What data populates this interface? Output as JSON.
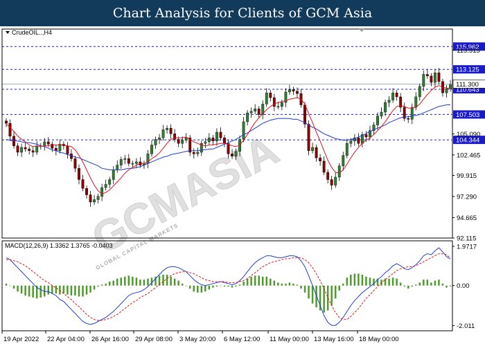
{
  "header": {
    "title": "Chart Analysis for Clients of GCM Asia"
  },
  "watermark": {
    "main": "GCMASIA",
    "sub": "GLOBAL CAPITAL MARKETS"
  },
  "colors": {
    "bull": "#2e7d32",
    "bear": "#8b0000",
    "ma_fast": "#e0121b",
    "ma_slow": "#1f3fcf",
    "level": "#1a1acd",
    "macd_line": "#1f3fcf",
    "signal": "#e0121b",
    "hist": "#4c9a2a"
  },
  "chart_data": [
    {
      "type": "candlestick",
      "symbol_label": "CrudeOIL..,H4",
      "ylim": [
        92.115,
        118.14
      ],
      "yticks": [
        "115.515",
        "105.090",
        "102.465",
        "99.915",
        "97.290",
        "94.665",
        "92.115"
      ],
      "xticks": [
        "19 Apr 2022",
        "22 Apr 04:00",
        "26 Apr 16:00",
        "29 Apr 08:00",
        "3 May 20:00",
        "6 May 12:00",
        "11 May 00:00",
        "13 May 16:00",
        "18 May 00:00"
      ],
      "current_price": 111.3,
      "current_price_label": "111.300",
      "levels": [
        {
          "value": 115.962,
          "label": "115.962"
        },
        {
          "value": 113.125,
          "label": "113.125"
        },
        {
          "value": 110.643,
          "label": "110.643"
        },
        {
          "value": 107.503,
          "label": "107.503"
        },
        {
          "value": 104.344,
          "label": "104.344"
        }
      ],
      "closes": [
        106.4,
        104.8,
        103.6,
        102.8,
        103.4,
        103.2,
        103.0,
        102.8,
        103.6,
        103.6,
        104.1,
        103.8,
        103.3,
        103.0,
        103.8,
        103.6,
        102.6,
        102.0,
        100.8,
        99.4,
        98.3,
        97.5,
        96.6,
        96.9,
        97.3,
        98.4,
        98.8,
        99.4,
        100.6,
        101.2,
        101.9,
        102.0,
        101.4,
        101.4,
        101.6,
        101.2,
        101.4,
        102.6,
        103.7,
        104.4,
        104.6,
        105.6,
        105.8,
        105.1,
        104.4,
        103.9,
        104.3,
        104.6,
        102.8,
        102.6,
        102.8,
        103.9,
        104.1,
        104.6,
        104.2,
        105.3,
        104.6,
        103.9,
        102.6,
        102.3,
        102.9,
        104.4,
        106.6,
        107.7,
        107.9,
        108.2,
        107.5,
        108.8,
        110.2,
        109.6,
        108.5,
        108.5,
        109.0,
        110.3,
        110.6,
        110.4,
        110.1,
        108.7,
        106.3,
        103.0,
        103.4,
        102.1,
        101.7,
        100.3,
        99.4,
        98.7,
        99.7,
        101.1,
        102.4,
        103.9,
        104.2,
        104.6,
        103.9,
        105.0,
        104.7,
        105.5,
        106.2,
        107.3,
        107.8,
        109.0,
        109.3,
        110.2,
        109.7,
        108.4,
        107.0,
        106.9,
        108.4,
        109.7,
        111.0,
        112.5,
        112.3,
        111.5,
        112.7,
        111.6,
        110.2,
        110.7,
        111.2
      ],
      "ma_fast": [
        106.3,
        105.9,
        105.4,
        104.8,
        104.4,
        104.1,
        103.7,
        103.5,
        103.6,
        103.5,
        103.6,
        103.6,
        103.7,
        103.7,
        103.7,
        103.7,
        103.6,
        103.5,
        103.1,
        102.4,
        101.6,
        100.6,
        99.6,
        98.7,
        98.0,
        97.6,
        97.8,
        98.1,
        98.6,
        99.1,
        99.6,
        100.2,
        100.6,
        100.9,
        101.2,
        101.4,
        101.4,
        101.6,
        102.0,
        102.3,
        102.7,
        103.3,
        103.9,
        104.4,
        104.6,
        104.6,
        104.6,
        104.7,
        104.4,
        104.1,
        103.9,
        103.7,
        103.6,
        103.7,
        103.7,
        103.8,
        103.9,
        103.9,
        103.8,
        103.6,
        103.5,
        103.7,
        104.3,
        105.0,
        105.8,
        106.5,
        107.1,
        107.6,
        108.1,
        108.5,
        108.8,
        109.0,
        109.1,
        109.2,
        109.4,
        109.5,
        109.6,
        109.4,
        108.8,
        107.6,
        106.5,
        105.3,
        104.2,
        103.0,
        101.8,
        100.9,
        100.3,
        100.2,
        100.6,
        101.3,
        102.1,
        102.8,
        103.4,
        103.9,
        104.3,
        104.6,
        105.0,
        105.5,
        106.0,
        106.6,
        107.3,
        108.0,
        108.5,
        108.6,
        108.5,
        108.3,
        108.3,
        108.4,
        108.8,
        109.4,
        110.0,
        110.5,
        110.9,
        111.1,
        110.9,
        110.8,
        110.7
      ],
      "ma_slow": [
        104.4,
        104.3,
        104.2,
        104.2,
        104.1,
        104.0,
        104.0,
        103.9,
        103.8,
        103.6,
        103.5,
        103.3,
        103.1,
        103.0,
        102.8,
        102.7,
        102.5,
        102.4,
        102.2,
        102.1,
        101.9,
        101.7,
        101.5,
        101.3,
        101.1,
        100.8,
        100.7,
        100.6,
        100.6,
        100.6,
        100.6,
        100.7,
        100.8,
        100.8,
        100.9,
        101.0,
        101.2,
        101.4,
        101.6,
        101.8,
        102.0,
        102.2,
        102.3,
        102.5,
        102.6,
        102.7,
        102.8,
        102.9,
        103.0,
        103.0,
        103.0,
        103.1,
        103.1,
        103.2,
        103.2,
        103.4,
        103.6,
        103.8,
        104.0,
        104.2,
        104.4,
        104.7,
        105.0,
        105.2,
        105.5,
        105.8,
        106.1,
        106.4,
        106.6,
        106.8,
        106.9,
        107.0,
        107.0,
        107.0,
        107.0,
        106.9,
        106.9,
        106.7,
        106.5,
        106.2,
        105.9,
        105.7,
        105.4,
        105.1,
        104.9,
        104.7,
        104.5,
        104.4,
        104.3,
        104.3,
        104.4,
        104.5,
        104.7,
        104.9,
        105.1,
        105.4,
        105.6,
        105.8,
        106.0,
        106.2,
        106.5,
        106.7,
        106.9,
        107.1,
        107.2,
        107.2,
        107.3,
        107.4,
        107.5,
        107.7,
        107.9,
        108.1,
        108.3,
        108.5,
        108.6,
        108.7,
        108.7
      ]
    },
    {
      "type": "macd",
      "label": "MACD(12,26,9) 1.3362 1.3765 -0.0403",
      "params": [
        12,
        26,
        9
      ],
      "values": {
        "macd": 1.3362,
        "signal": 1.3765,
        "histogram": -0.0403
      },
      "ylim": [
        -2.27,
        2.25
      ],
      "yticks": [
        "1.9717",
        "0.00",
        "-2.011"
      ],
      "macd": [
        1.4,
        1.3,
        1.1,
        0.9,
        0.7,
        0.5,
        0.3,
        0.1,
        -0.1,
        -0.2,
        -0.3,
        -0.3,
        -0.4,
        -0.5,
        -0.7,
        -0.8,
        -1.0,
        -1.2,
        -1.4,
        -1.6,
        -1.8,
        -1.9,
        -1.95,
        -1.9,
        -1.8,
        -1.7,
        -1.6,
        -1.45,
        -1.3,
        -1.1,
        -0.9,
        -0.7,
        -0.5,
        -0.4,
        -0.35,
        -0.3,
        -0.2,
        -0.05,
        0.15,
        0.35,
        0.55,
        0.75,
        0.9,
        0.95,
        0.95,
        0.9,
        0.8,
        0.7,
        0.5,
        0.3,
        0.15,
        0.05,
        0.0,
        0.05,
        0.1,
        0.15,
        0.2,
        0.15,
        0.1,
        0.05,
        0.1,
        0.25,
        0.45,
        0.7,
        0.95,
        1.15,
        1.3,
        1.4,
        1.5,
        1.5,
        1.45,
        1.4,
        1.4,
        1.45,
        1.5,
        1.5,
        1.45,
        1.25,
        0.95,
        0.5,
        0.0,
        -0.5,
        -1.0,
        -1.5,
        -1.85,
        -2.0,
        -2.0,
        -1.85,
        -1.6,
        -1.3,
        -1.0,
        -0.75,
        -0.55,
        -0.35,
        -0.2,
        -0.05,
        0.1,
        0.3,
        0.45,
        0.65,
        0.8,
        1.0,
        1.1,
        1.0,
        0.85,
        0.8,
        0.9,
        1.05,
        1.25,
        1.5,
        1.6,
        1.55,
        1.75,
        1.9,
        1.7,
        1.45,
        1.34
      ],
      "signal": [
        1.3,
        1.3,
        1.25,
        1.2,
        1.1,
        1.0,
        0.85,
        0.7,
        0.55,
        0.4,
        0.25,
        0.15,
        0.0,
        -0.1,
        -0.25,
        -0.4,
        -0.55,
        -0.7,
        -0.9,
        -1.05,
        -1.25,
        -1.45,
        -1.6,
        -1.7,
        -1.75,
        -1.75,
        -1.7,
        -1.65,
        -1.55,
        -1.45,
        -1.3,
        -1.15,
        -1.0,
        -0.85,
        -0.75,
        -0.6,
        -0.5,
        -0.4,
        -0.25,
        -0.1,
        0.05,
        0.2,
        0.35,
        0.5,
        0.6,
        0.65,
        0.7,
        0.7,
        0.65,
        0.6,
        0.5,
        0.4,
        0.3,
        0.25,
        0.2,
        0.2,
        0.2,
        0.2,
        0.15,
        0.15,
        0.15,
        0.2,
        0.25,
        0.35,
        0.5,
        0.65,
        0.8,
        0.95,
        1.05,
        1.15,
        1.2,
        1.25,
        1.3,
        1.35,
        1.35,
        1.4,
        1.4,
        1.4,
        1.3,
        1.15,
        0.9,
        0.6,
        0.25,
        -0.15,
        -0.6,
        -1.0,
        -1.35,
        -1.6,
        -1.7,
        -1.7,
        -1.55,
        -1.35,
        -1.15,
        -0.9,
        -0.65,
        -0.45,
        -0.25,
        -0.05,
        0.15,
        0.3,
        0.45,
        0.6,
        0.75,
        0.85,
        0.9,
        0.95,
        0.95,
        1.0,
        1.1,
        1.2,
        1.3,
        1.4,
        1.5,
        1.6,
        1.6,
        1.55,
        1.38
      ]
    }
  ]
}
